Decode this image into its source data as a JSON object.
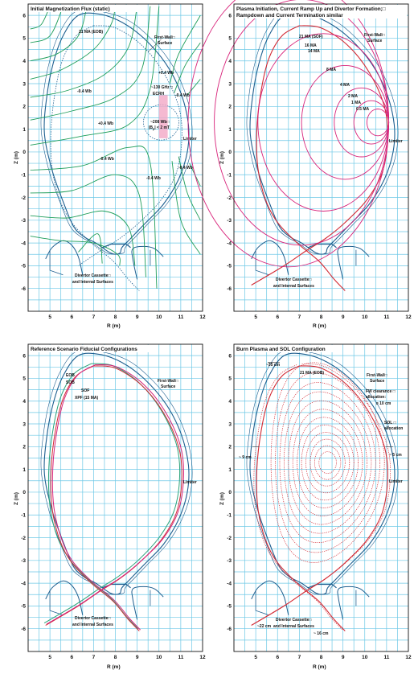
{
  "axes": {
    "xlabel": "R (m)",
    "ylabel": "Z (m)",
    "xlim": [
      4,
      12
    ],
    "ylim": [
      -7,
      6.5
    ],
    "xticks": [
      5,
      6,
      7,
      8,
      9,
      10,
      11,
      12
    ],
    "yticks": [
      -6,
      -5,
      -4,
      -3,
      -2,
      -1,
      0,
      1,
      2,
      3,
      4,
      5,
      6
    ],
    "grid": true
  },
  "colors": {
    "grid": "#6cc8e6",
    "first_wall": "#1f5f8f",
    "flux_lines": "#1f9e5a",
    "current_contours": "#d8237a",
    "separatrix": "#d32a34",
    "eob": "#d8237a",
    "sob": "#d32a34",
    "xpf": "#2aa37a",
    "limiter_shade": "#f2a8c6"
  },
  "panels": [
    {
      "title": "Initial Magnetization Flux (static)",
      "labels": {
        "eob": "21 MA (EOB)",
        "first_wall": "First-Wall□",
        "first_wall2": "Surface",
        "plus04a": "+0.4 Wb",
        "plus04b": "+0.4 Wb",
        "minus04a": "-0.4 Wb",
        "minus04b": "-0.4 Wb",
        "minus04c": "-0.4 Wb",
        "minus04d": "-0.4 Wb",
        "minus04e": "-0.4 Wb",
        "ecrh1": "~130 GHz □",
        "ecrh2": "ECRH",
        "wb208": "~208 Wb□",
        "bfield": "|B",
        "bfield2": "p",
        "bfield3": "| < 2 mT",
        "limiter": "Limiter",
        "divertor1": "Divertor Cassette□",
        "divertor2": "and Internal Surfaces"
      }
    },
    {
      "title": "Plasma Initiation, Current Ramp Up and Divertor Formation;□",
      "title2": "Rampdown and Current Termination similar",
      "labels": {
        "sof": "21 MA (SOF)",
        "ma16": "16 MA",
        "ma14": "14 MA",
        "ma8": "8 MA",
        "ma4": "4 MA",
        "ma2": "2 MA",
        "ma1": "1 MA",
        "ma05": "0.5 MA",
        "first_wall": "First-Wall□",
        "first_wall2": "Surface",
        "limiter": "Limiter",
        "divertor1": "Divertor Cassette□",
        "divertor2": "and Internal Surfaces"
      },
      "current_contours_MA": [
        0.5,
        1,
        2,
        4,
        8,
        14,
        16,
        21
      ]
    },
    {
      "title": "Reference Scenario Fiducial Configurations",
      "labels": {
        "eob": "EOB",
        "sob": "SOB",
        "sof": "SOF",
        "xpf": "XPF (15 MA)",
        "first_wall": "First-Wall□",
        "first_wall2": "Surface",
        "limiter": "Limiter",
        "divertor1": "Divertor Cassette□",
        "divertor2": "and Internal Surfaces"
      }
    },
    {
      "title": "Burn Plasma and SOL Configuration",
      "labels": {
        "cm35": "~35 cm",
        "eob": "21 MA (EOB)",
        "first_wall": "First-Wall□",
        "first_wall2": "Surface",
        "fw_clear1": "FW clearance □",
        "fw_clear2": "allocation:",
        "cm10": "≥ 10 cm",
        "sol1": "SOL □",
        "sol2": "allocation",
        "cm9": "~ 9 cm",
        "cm5": "~ 5 cm",
        "limiter": "Limiter",
        "cm22": "~22 cm",
        "cm16": "~ 16 cm",
        "divertor1": "Divertor Cassette□",
        "divertor2": "and Internal Surfaces"
      }
    }
  ]
}
